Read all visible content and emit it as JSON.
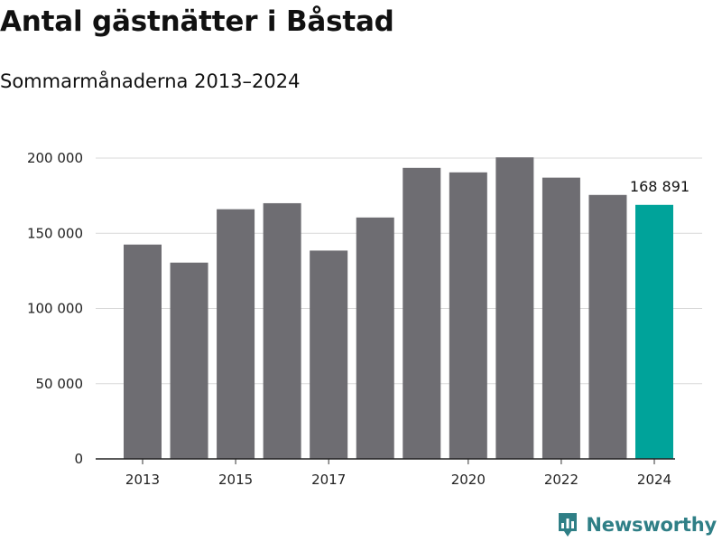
{
  "header": {
    "title": "Antal gästnätter i Båstad",
    "subtitle": "Sommarmånaderna 2013–2024"
  },
  "brand": {
    "name": "Newsworthy",
    "color": "#2f7f86"
  },
  "chart_data": {
    "type": "bar",
    "categories": [
      "2013",
      "2014",
      "2015",
      "2016",
      "2017",
      "2018",
      "2019",
      "2020",
      "2021",
      "2022",
      "2023",
      "2024"
    ],
    "values": [
      142500,
      130500,
      166000,
      170000,
      138500,
      160500,
      193500,
      190500,
      200500,
      187000,
      175500,
      168891
    ],
    "x_tick_labels": [
      "2013",
      "",
      "2015",
      "",
      "2017",
      "",
      "",
      "2020",
      "",
      "2022",
      "",
      "2024"
    ],
    "y_ticks": [
      0,
      50000,
      100000,
      150000,
      200000
    ],
    "y_tick_labels": [
      "0",
      "50 000",
      "100 000",
      "150 000",
      "200 000"
    ],
    "ylim": [
      0,
      200000
    ],
    "highlight_index": 11,
    "highlight_label": "168 891",
    "bar_color": "#6e6d72",
    "highlight_color": "#00a39a",
    "grid": true
  }
}
